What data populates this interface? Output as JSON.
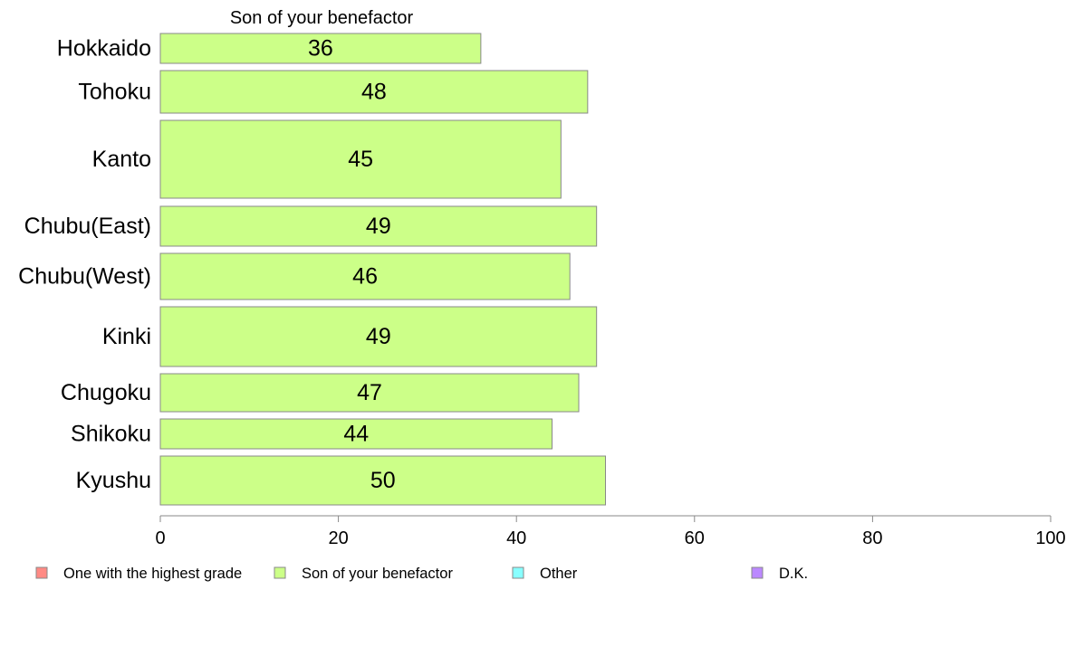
{
  "chart_data": {
    "type": "bar",
    "orientation": "horizontal",
    "title": "Son of your benefactor",
    "categories": [
      "Hokkaido",
      "Tohoku",
      "Kanto",
      "Chubu(East)",
      "Chubu(West)",
      "Kinki",
      "Chugoku",
      "Shikoku",
      "Kyushu"
    ],
    "series": [
      {
        "name": "Son of your benefactor",
        "color": "#ccff88",
        "values": [
          36,
          48,
          45,
          49,
          46,
          49,
          47,
          44,
          50
        ],
        "labels": [
          "36",
          "48",
          "45",
          "49",
          "46",
          "49",
          "47",
          "44",
          "50"
        ]
      }
    ],
    "xlim": [
      0,
      100
    ],
    "xticks": [
      0,
      20,
      40,
      60,
      80,
      100
    ],
    "xtick_labels": [
      "0",
      "20",
      "40",
      "60",
      "80",
      "100"
    ],
    "grid": false,
    "legend_position": "bottom",
    "legend": [
      {
        "label": "One with the highest grade",
        "color": "#ff8a84"
      },
      {
        "label": "Son of your benefactor",
        "color": "#ccff88"
      },
      {
        "label": "Other",
        "color": "#88ffff"
      },
      {
        "label": "D.K.",
        "color": "#bb88ff"
      }
    ]
  }
}
